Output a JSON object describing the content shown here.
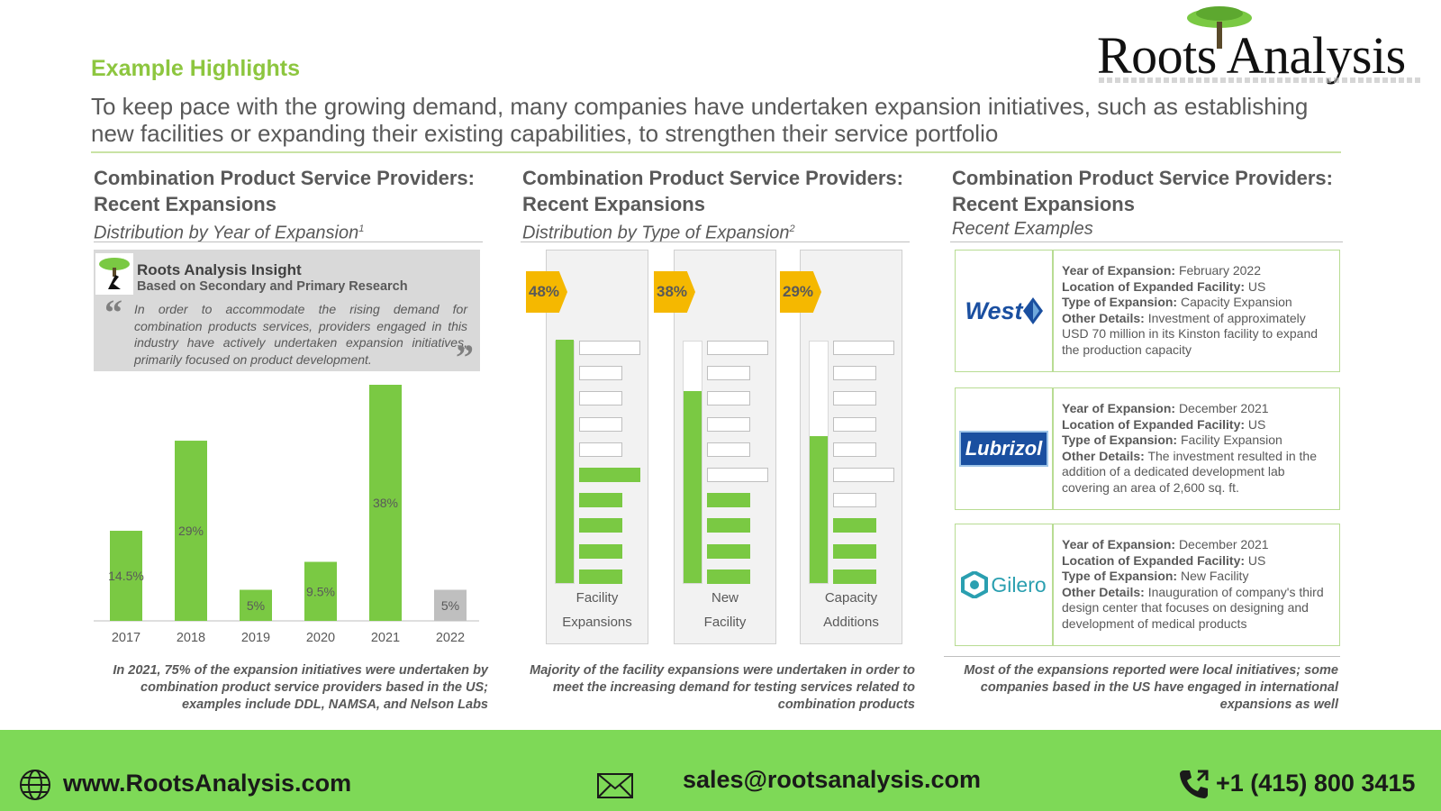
{
  "logo": {
    "text": "Roots Analysis"
  },
  "highlights": {
    "title": "Example Highlights",
    "text": "To keep pace with the growing demand, many companies have undertaken expansion initiatives, such as establishing new facilities or expanding their existing capabilities, to strengthen their service portfolio"
  },
  "left": {
    "title": "Combination Product Service Providers: Recent Expansions",
    "subtitle": "Distribution by Year of Expansion",
    "subtitle_sup": "1",
    "insight": {
      "title": "Roots Analysis Insight",
      "subtitle": "Based on Secondary and Primary Research",
      "body": "In order to accommodate the rising demand for combination products services, providers engaged in this industry have actively undertaken expansion initiatives, primarily focused on product development."
    },
    "note": "In 2021, 75% of the expansion initiatives were undertaken by combination product service providers based in the US; examples include DDL, NAMSA, and Nelson Labs"
  },
  "chart_data": {
    "type": "bar",
    "categories": [
      "2017",
      "2018",
      "2019",
      "2020",
      "2021",
      "2022"
    ],
    "values": [
      14.5,
      29,
      5,
      9.5,
      38,
      5
    ],
    "labels": [
      "14.5%",
      "29%",
      "5%",
      "9.5%",
      "38%",
      "5%"
    ],
    "colors": [
      "#7ac943",
      "#7ac943",
      "#7ac943",
      "#7ac943",
      "#7ac943",
      "#bfbfbf"
    ],
    "ylim": [
      0,
      38
    ]
  },
  "middle": {
    "title": "Combination Product Service Providers: Recent Expansions",
    "subtitle": "Distribution by Type of Expansion",
    "subtitle_sup": "2",
    "types": [
      {
        "pct": "48%",
        "value": 48,
        "label1": "Facility",
        "label2": "Expansions"
      },
      {
        "pct": "38%",
        "value": 38,
        "label1": "New",
        "label2": "Facility"
      },
      {
        "pct": "29%",
        "value": 29,
        "label1": "Capacity",
        "label2": "Additions"
      }
    ],
    "note": "Majority of the facility expansions were undertaken in order to meet the increasing demand for testing services related to combination products"
  },
  "right": {
    "title": "Combination Product Service Providers: Recent Expansions",
    "subtitle": "Recent Examples",
    "field_labels": {
      "year": "Year of Expansion:",
      "location": "Location of Expanded Facility:",
      "type": "Type of Expansion:",
      "details": "Other Details:"
    },
    "examples": [
      {
        "company": "West",
        "year": "February 2022",
        "location": "US",
        "type": "Capacity Expansion",
        "details": "Investment of approximately USD 70 million in its Kinston facility to expand the production capacity"
      },
      {
        "company": "Lubrizol",
        "year": "December 2021",
        "location": "US",
        "type": "Facility Expansion",
        "details": "The investment resulted in the addition of a dedicated development lab covering an area of 2,600 sq. ft."
      },
      {
        "company": "Gilero",
        "year": "December 2021",
        "location": "US",
        "type": "New Facility",
        "details": "Inauguration of company's third design center that focuses on designing and development of medical products"
      }
    ],
    "note": "Most of the expansions reported were local initiatives; some companies based in the US have engaged in international expansions as well"
  },
  "footer": {
    "website": "www.RootsAnalysis.com",
    "email": "sales@rootsanalysis.com",
    "phone": "+1 (415) 800 3415"
  },
  "icons": [
    "tree-logo-icon",
    "globe-icon",
    "mail-icon",
    "phone-icon"
  ]
}
